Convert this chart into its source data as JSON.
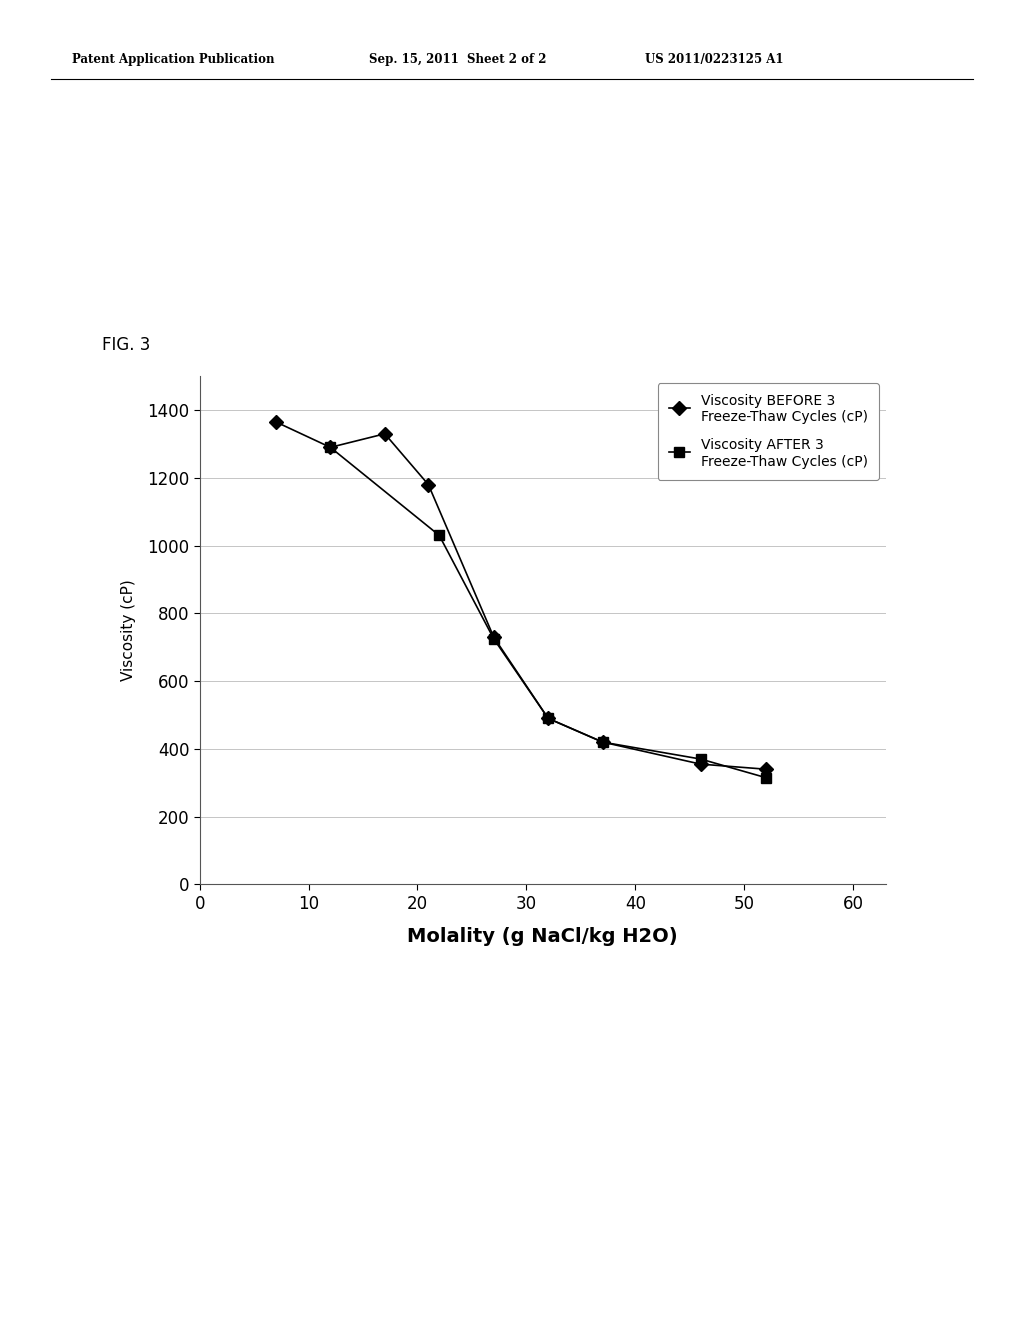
{
  "before_x": [
    7,
    12,
    17,
    21,
    27,
    32,
    37,
    46,
    52
  ],
  "before_y": [
    1365,
    1290,
    1330,
    1180,
    730,
    490,
    420,
    355,
    340
  ],
  "after_x": [
    12,
    22,
    27,
    32,
    37,
    46,
    52
  ],
  "after_y": [
    1290,
    1030,
    725,
    490,
    420,
    370,
    315
  ],
  "xlabel": "Molality (g NaCl/kg H2O)",
  "ylabel": "Viscosity (cP)",
  "fig_label": "FIG. 3",
  "legend_before": "Viscosity BEFORE 3\nFreeze-Thaw Cycles (cP)",
  "legend_after": "Viscosity AFTER 3\nFreeze-Thaw Cycles (cP)",
  "header_left": "Patent Application Publication",
  "header_mid": "Sep. 15, 2011  Sheet 2 of 2",
  "header_right": "US 2011/0223125 A1",
  "xlim": [
    0,
    63
  ],
  "ylim": [
    0,
    1500
  ],
  "xticks": [
    0,
    10,
    20,
    30,
    40,
    50,
    60
  ],
  "yticks": [
    0,
    200,
    400,
    600,
    800,
    1000,
    1200,
    1400
  ],
  "background_color": "#ffffff",
  "line_color": "#000000",
  "grid_color": "#bbbbbb"
}
